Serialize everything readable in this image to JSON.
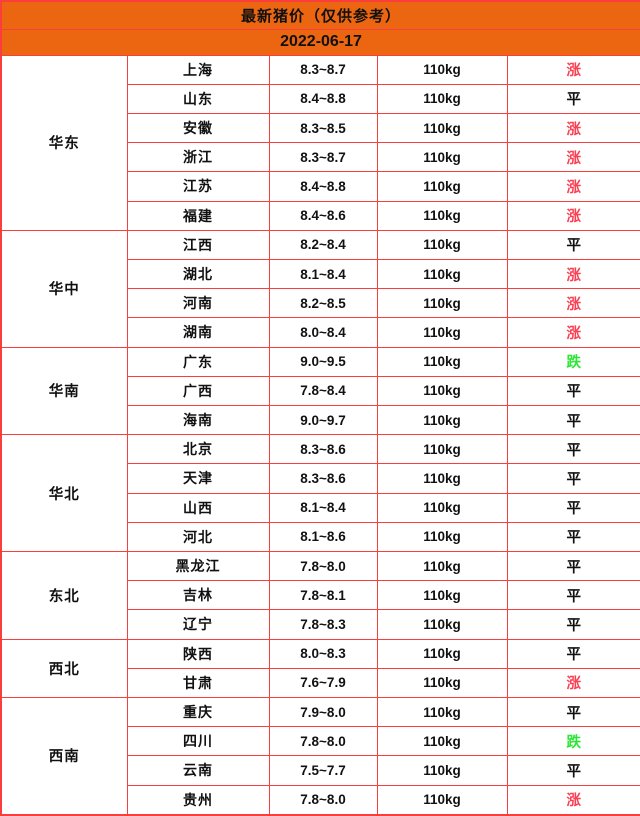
{
  "header": {
    "title": "最新猪价（仅供参考）",
    "date": "2022-06-17"
  },
  "colors": {
    "border": "#fa3e3e",
    "header_bg": "#ec6611",
    "trend_up": "#fb4053",
    "trend_down": "#2ee437",
    "text": "#111111"
  },
  "table": {
    "trend_legend": {
      "up": "涨",
      "down": "跌",
      "flat": "平"
    },
    "groups": [
      {
        "region": "华东",
        "rows": [
          {
            "province": "上海",
            "price": "8.3~8.7",
            "weight": "110kg",
            "trend": "涨"
          },
          {
            "province": "山东",
            "price": "8.4~8.8",
            "weight": "110kg",
            "trend": "平"
          },
          {
            "province": "安徽",
            "price": "8.3~8.5",
            "weight": "110kg",
            "trend": "涨"
          },
          {
            "province": "浙江",
            "price": "8.3~8.7",
            "weight": "110kg",
            "trend": "涨"
          },
          {
            "province": "江苏",
            "price": "8.4~8.8",
            "weight": "110kg",
            "trend": "涨"
          },
          {
            "province": "福建",
            "price": "8.4~8.6",
            "weight": "110kg",
            "trend": "涨"
          }
        ]
      },
      {
        "region": "华中",
        "rows": [
          {
            "province": "江西",
            "price": "8.2~8.4",
            "weight": "110kg",
            "trend": "平"
          },
          {
            "province": "湖北",
            "price": "8.1~8.4",
            "weight": "110kg",
            "trend": "涨"
          },
          {
            "province": "河南",
            "price": "8.2~8.5",
            "weight": "110kg",
            "trend": "涨"
          },
          {
            "province": "湖南",
            "price": "8.0~8.4",
            "weight": "110kg",
            "trend": "涨"
          }
        ]
      },
      {
        "region": "华南",
        "rows": [
          {
            "province": "广东",
            "price": "9.0~9.5",
            "weight": "110kg",
            "trend": "跌"
          },
          {
            "province": "广西",
            "price": "7.8~8.4",
            "weight": "110kg",
            "trend": "平"
          },
          {
            "province": "海南",
            "price": "9.0~9.7",
            "weight": "110kg",
            "trend": "平"
          }
        ]
      },
      {
        "region": "华北",
        "rows": [
          {
            "province": "北京",
            "price": "8.3~8.6",
            "weight": "110kg",
            "trend": "平"
          },
          {
            "province": "天津",
            "price": "8.3~8.6",
            "weight": "110kg",
            "trend": "平"
          },
          {
            "province": "山西",
            "price": "8.1~8.4",
            "weight": "110kg",
            "trend": "平"
          },
          {
            "province": "河北",
            "price": "8.1~8.6",
            "weight": "110kg",
            "trend": "平"
          }
        ]
      },
      {
        "region": "东北",
        "rows": [
          {
            "province": "黑龙江",
            "price": "7.8~8.0",
            "weight": "110kg",
            "trend": "平"
          },
          {
            "province": "吉林",
            "price": "7.8~8.1",
            "weight": "110kg",
            "trend": "平"
          },
          {
            "province": "辽宁",
            "price": "7.8~8.3",
            "weight": "110kg",
            "trend": "平"
          }
        ]
      },
      {
        "region": "西北",
        "rows": [
          {
            "province": "陕西",
            "price": "8.0~8.3",
            "weight": "110kg",
            "trend": "平"
          },
          {
            "province": "甘肃",
            "price": "7.6~7.9",
            "weight": "110kg",
            "trend": "涨"
          }
        ]
      },
      {
        "region": "西南",
        "rows": [
          {
            "province": "重庆",
            "price": "7.9~8.0",
            "weight": "110kg",
            "trend": "平"
          },
          {
            "province": "四川",
            "price": "7.8~8.0",
            "weight": "110kg",
            "trend": "跌"
          },
          {
            "province": "云南",
            "price": "7.5~7.7",
            "weight": "110kg",
            "trend": "平"
          },
          {
            "province": "贵州",
            "price": "7.8~8.0",
            "weight": "110kg",
            "trend": "涨"
          }
        ]
      }
    ]
  }
}
